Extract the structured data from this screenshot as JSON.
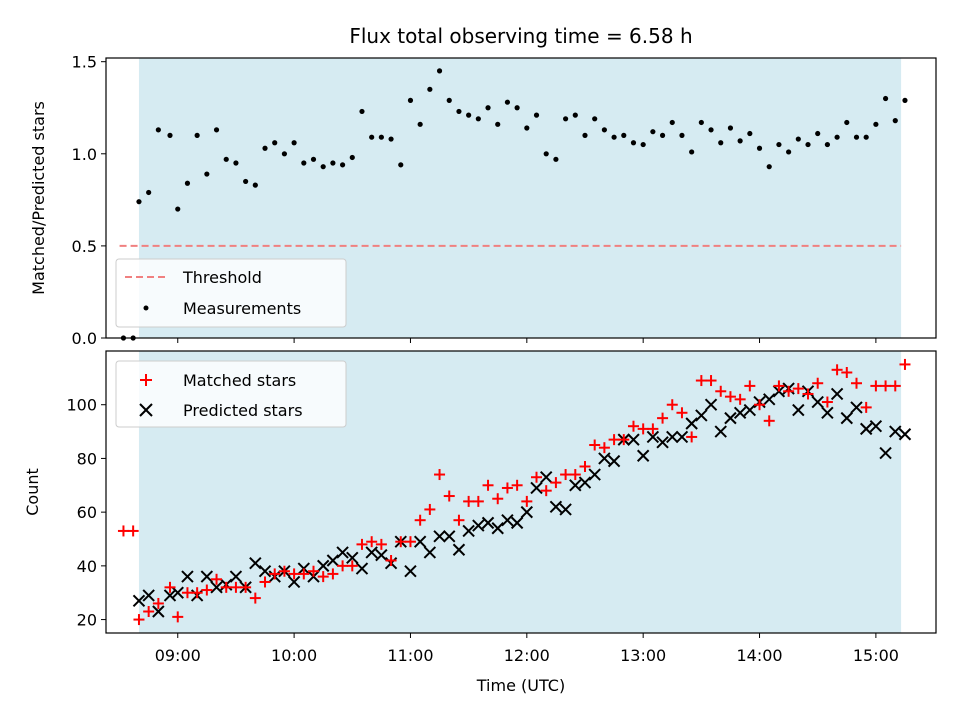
{
  "chart_data": [
    {
      "type": "scatter",
      "title": "Flux total observing time = 6.58 h",
      "xlabel": "",
      "ylabel": "Matched/Predicted stars",
      "xlim": [
        "08:23",
        "15:31"
      ],
      "ylim": [
        0,
        1.52
      ],
      "y_ticks": [
        "0.0",
        "0.5",
        "1.0",
        "1.5"
      ],
      "shaded_range": [
        "08:40",
        "15:13"
      ],
      "threshold": {
        "name": "Threshold",
        "value": 0.5,
        "x_range": [
          "08:30",
          "15:13"
        ],
        "color": "#f08080"
      },
      "legend": {
        "placement": "lower-left",
        "entries": [
          "Threshold",
          "Measurements"
        ]
      },
      "series": [
        {
          "name": "Measurements",
          "color": "#000000",
          "x": [
            "08:32",
            "08:37",
            "08:40",
            "08:45",
            "08:50",
            "08:56",
            "09:00",
            "09:05",
            "09:10",
            "09:15",
            "09:20",
            "09:25",
            "09:30",
            "09:35",
            "09:40",
            "09:45",
            "09:50",
            "09:55",
            "10:00",
            "10:05",
            "10:10",
            "10:15",
            "10:20",
            "10:25",
            "10:30",
            "10:35",
            "10:40",
            "10:45",
            "10:50",
            "10:55",
            "11:00",
            "11:05",
            "11:10",
            "11:15",
            "11:20",
            "11:25",
            "11:30",
            "11:35",
            "11:40",
            "11:45",
            "11:50",
            "11:55",
            "12:00",
            "12:05",
            "12:10",
            "12:15",
            "12:20",
            "12:25",
            "12:30",
            "12:35",
            "12:40",
            "12:45",
            "12:50",
            "12:55",
            "13:00",
            "13:05",
            "13:10",
            "13:15",
            "13:20",
            "13:25",
            "13:30",
            "13:35",
            "13:40",
            "13:45",
            "13:50",
            "13:55",
            "14:00",
            "14:05",
            "14:10",
            "14:15",
            "14:20",
            "14:25",
            "14:30",
            "14:35",
            "14:40",
            "14:45",
            "14:50",
            "14:55",
            "15:00",
            "15:05",
            "15:10",
            "15:15"
          ],
          "y": [
            0.0,
            0.0,
            0.74,
            0.79,
            1.13,
            1.1,
            0.7,
            0.84,
            1.1,
            0.89,
            1.13,
            0.97,
            0.95,
            0.85,
            0.83,
            1.03,
            1.06,
            1.0,
            1.06,
            0.95,
            0.97,
            0.93,
            0.95,
            0.94,
            0.98,
            1.23,
            1.09,
            1.09,
            1.08,
            0.94,
            1.29,
            1.16,
            1.35,
            1.45,
            1.29,
            1.23,
            1.21,
            1.19,
            1.25,
            1.16,
            1.28,
            1.25,
            1.14,
            1.21,
            1.0,
            0.97,
            1.19,
            1.21,
            1.1,
            1.19,
            1.13,
            1.09,
            1.1,
            1.06,
            1.05,
            1.12,
            1.1,
            1.17,
            1.1,
            1.01,
            1.17,
            1.13,
            1.06,
            1.14,
            1.07,
            1.11,
            1.03,
            0.93,
            1.05,
            1.01,
            1.08,
            1.05,
            1.11,
            1.05,
            1.09,
            1.17,
            1.09,
            1.09,
            1.16,
            1.3,
            1.18,
            1.29
          ]
        }
      ]
    },
    {
      "type": "scatter",
      "title": "",
      "xlabel": "Time (UTC)",
      "ylabel": "Count",
      "xlim": [
        "08:23",
        "15:31"
      ],
      "ylim": [
        15,
        120
      ],
      "x_ticks": [
        "09:00",
        "10:00",
        "11:00",
        "12:00",
        "13:00",
        "14:00",
        "15:00"
      ],
      "y_ticks": [
        "20",
        "40",
        "60",
        "80",
        "100"
      ],
      "shaded_range": [
        "08:40",
        "15:13"
      ],
      "legend": {
        "placement": "upper-left",
        "entries": [
          "Matched stars",
          "Predicted stars"
        ]
      },
      "series": [
        {
          "name": "Matched stars",
          "marker": "plus",
          "color": "#ff0000",
          "x": [
            "08:32",
            "08:37",
            "08:40",
            "08:45",
            "08:50",
            "08:56",
            "09:00",
            "09:05",
            "09:10",
            "09:15",
            "09:20",
            "09:25",
            "09:30",
            "09:35",
            "09:40",
            "09:45",
            "09:50",
            "09:55",
            "10:00",
            "10:05",
            "10:10",
            "10:15",
            "10:20",
            "10:25",
            "10:30",
            "10:35",
            "10:40",
            "10:45",
            "10:50",
            "10:55",
            "11:00",
            "11:05",
            "11:10",
            "11:15",
            "11:20",
            "11:25",
            "11:30",
            "11:35",
            "11:40",
            "11:45",
            "11:50",
            "11:55",
            "12:00",
            "12:05",
            "12:10",
            "12:15",
            "12:20",
            "12:25",
            "12:30",
            "12:35",
            "12:40",
            "12:45",
            "12:50",
            "12:55",
            "13:00",
            "13:05",
            "13:10",
            "13:15",
            "13:20",
            "13:25",
            "13:30",
            "13:35",
            "13:40",
            "13:45",
            "13:50",
            "13:55",
            "14:00",
            "14:05",
            "14:10",
            "14:15",
            "14:20",
            "14:25",
            "14:30",
            "14:35",
            "14:40",
            "14:45",
            "14:50",
            "14:55",
            "15:00",
            "15:05",
            "15:10",
            "15:15"
          ],
          "y": [
            53,
            53,
            20,
            23,
            26,
            32,
            21,
            30,
            30,
            31,
            35,
            32,
            32,
            32,
            28,
            34,
            37,
            38,
            37,
            37,
            38,
            36,
            37,
            40,
            40,
            48,
            49,
            48,
            42,
            49,
            49,
            57,
            61,
            74,
            66,
            57,
            64,
            64,
            70,
            65,
            69,
            70,
            64,
            73,
            68,
            71,
            74,
            74,
            77,
            85,
            84,
            87,
            87,
            92,
            91,
            91,
            95,
            100,
            97,
            88,
            109,
            109,
            105,
            103,
            102,
            107,
            100,
            94,
            107,
            105,
            106,
            104,
            108,
            101,
            113,
            112,
            108,
            99,
            107,
            107,
            107,
            115
          ]
        },
        {
          "name": "Predicted stars",
          "marker": "x",
          "color": "#000000",
          "x": [
            "08:40",
            "08:45",
            "08:50",
            "08:56",
            "09:00",
            "09:05",
            "09:10",
            "09:15",
            "09:20",
            "09:25",
            "09:30",
            "09:35",
            "09:40",
            "09:45",
            "09:50",
            "09:55",
            "10:00",
            "10:05",
            "10:10",
            "10:15",
            "10:20",
            "10:25",
            "10:30",
            "10:35",
            "10:40",
            "10:45",
            "10:50",
            "10:55",
            "11:00",
            "11:05",
            "11:10",
            "11:15",
            "11:20",
            "11:25",
            "11:30",
            "11:35",
            "11:40",
            "11:45",
            "11:50",
            "11:55",
            "12:00",
            "12:05",
            "12:10",
            "12:15",
            "12:20",
            "12:25",
            "12:30",
            "12:35",
            "12:40",
            "12:45",
            "12:50",
            "12:55",
            "13:00",
            "13:05",
            "13:10",
            "13:15",
            "13:20",
            "13:25",
            "13:30",
            "13:35",
            "13:40",
            "13:45",
            "13:50",
            "13:55",
            "14:00",
            "14:05",
            "14:10",
            "14:15",
            "14:20",
            "14:25",
            "14:30",
            "14:35",
            "14:40",
            "14:45",
            "14:50",
            "14:55",
            "15:00",
            "15:05",
            "15:10",
            "15:15"
          ],
          "y": [
            27,
            29,
            23,
            29,
            30,
            36,
            29,
            36,
            32,
            33,
            36,
            32,
            41,
            38,
            36,
            38,
            34,
            39,
            36,
            40,
            42,
            45,
            43,
            39,
            45,
            44,
            41,
            49,
            38,
            49,
            45,
            51,
            51,
            46,
            53,
            55,
            56,
            54,
            57,
            56,
            60,
            69,
            73,
            62,
            61,
            70,
            71,
            74,
            80,
            79,
            87,
            87,
            81,
            88,
            86,
            88,
            88,
            93,
            96,
            100,
            90,
            95,
            97,
            98,
            101,
            102,
            105,
            106,
            98,
            105,
            101,
            97,
            104,
            95,
            99,
            91,
            92,
            82,
            90,
            89
          ]
        }
      ]
    }
  ]
}
